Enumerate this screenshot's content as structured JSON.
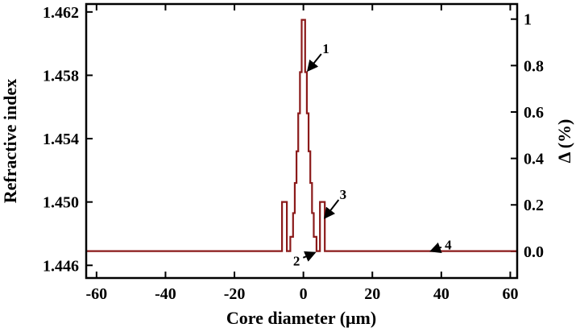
{
  "chart_data": {
    "type": "line",
    "xlabel": "Core diameter (μm)",
    "ylabel": "Refractive index",
    "y2label": "Δ (%)",
    "xlim": [
      -63,
      62
    ],
    "ylim": [
      1.4452,
      1.4625
    ],
    "y2lim": [
      -0.115,
      1.065
    ],
    "xticks": [
      -60,
      -40,
      -20,
      0,
      20,
      40,
      60
    ],
    "xtick_labels": [
      "-60",
      "-40",
      "-20",
      "0",
      "20",
      "40",
      "60"
    ],
    "yticks": [
      1.446,
      1.45,
      1.454,
      1.458,
      1.462
    ],
    "ytick_labels": [
      "1.446",
      "1.450",
      "1.454",
      "1.458",
      "1.462"
    ],
    "y2ticks": [
      0.0,
      0.2,
      0.4,
      0.6,
      0.8,
      1.0
    ],
    "y2tick_labels": [
      "0.0",
      "0.2",
      "0.4",
      "0.6",
      "0.8",
      "1"
    ],
    "grid": false,
    "line_color": "#8b1a1a",
    "series": [
      {
        "x": [
          -63,
          -6.2,
          -6.2,
          -4.8,
          -4.8,
          -3.8,
          -3.8,
          -3.0,
          -3.0,
          -2.5,
          -2.5,
          -2.0,
          -2.0,
          -1.5,
          -1.5,
          -1.0,
          -1.0,
          -0.5,
          -0.5,
          0.5,
          0.5,
          1.0,
          1.0,
          1.5,
          1.5,
          2.0,
          2.0,
          2.5,
          2.5,
          3.0,
          3.0,
          3.8,
          3.8,
          4.8,
          4.8,
          6.2,
          6.2,
          62
        ],
        "y": [
          1.4469,
          1.4469,
          1.45,
          1.45,
          1.4469,
          1.4469,
          1.4478,
          1.4478,
          1.4493,
          1.4493,
          1.4512,
          1.4512,
          1.4532,
          1.4532,
          1.4556,
          1.4556,
          1.4582,
          1.4582,
          1.4615,
          1.4615,
          1.4582,
          1.4582,
          1.4556,
          1.4556,
          1.4532,
          1.4532,
          1.4512,
          1.4512,
          1.4493,
          1.4493,
          1.4478,
          1.4478,
          1.4469,
          1.4469,
          1.45,
          1.45,
          1.4469,
          1.4469
        ]
      }
    ],
    "annotations": [
      {
        "label": "1",
        "text_x": 6.5,
        "text_y": 1.4597,
        "arrow_x": 1.3,
        "arrow_y": 1.4583
      },
      {
        "label": "2",
        "text_x": -2.0,
        "text_y": 1.4463,
        "arrow_x": 3.3,
        "arrow_y": 1.4468
      },
      {
        "label": "3",
        "text_x": 11.5,
        "text_y": 1.4505,
        "arrow_x": 6.2,
        "arrow_y": 1.449
      },
      {
        "label": "4",
        "text_x": 42.0,
        "text_y": 1.4473,
        "arrow_x": 37.0,
        "arrow_y": 1.4469
      }
    ]
  }
}
